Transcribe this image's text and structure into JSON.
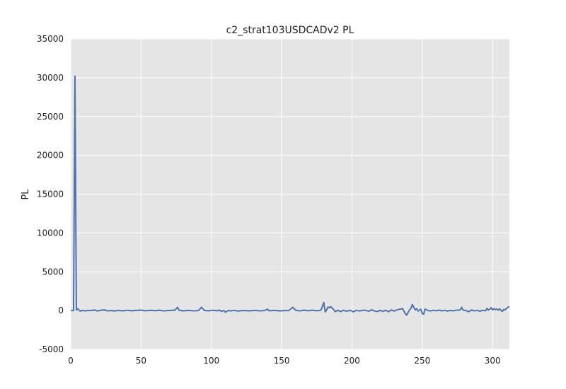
{
  "chart_data": {
    "type": "line",
    "title": "c2_strat103USDCADv2 PL",
    "xlabel": "",
    "ylabel": "PL",
    "xlim": [
      0,
      312
    ],
    "ylim": [
      -5000,
      35000
    ],
    "xticks": [
      0,
      50,
      100,
      150,
      200,
      250,
      300
    ],
    "yticks": [
      -5000,
      0,
      5000,
      10000,
      15000,
      20000,
      25000,
      30000,
      35000
    ],
    "grid": true,
    "background": "#e5e5e5",
    "grid_color": "#ffffff",
    "series": [
      {
        "color": "#4c72b0",
        "points": [
          [
            0,
            0
          ],
          [
            1,
            0
          ],
          [
            2,
            0
          ],
          [
            3,
            30200
          ],
          [
            4,
            50
          ],
          [
            5,
            250
          ],
          [
            6,
            30
          ],
          [
            7,
            -80
          ],
          [
            8,
            20
          ],
          [
            10,
            -30
          ],
          [
            12,
            0
          ],
          [
            15,
            20
          ],
          [
            17,
            80
          ],
          [
            19,
            -50
          ],
          [
            22,
            60
          ],
          [
            24,
            80
          ],
          [
            26,
            -40
          ],
          [
            29,
            10
          ],
          [
            31,
            -60
          ],
          [
            34,
            20
          ],
          [
            37,
            -30
          ],
          [
            40,
            40
          ],
          [
            43,
            -20
          ],
          [
            46,
            10
          ],
          [
            50,
            60
          ],
          [
            53,
            -20
          ],
          [
            57,
            30
          ],
          [
            60,
            -10
          ],
          [
            63,
            50
          ],
          [
            66,
            -40
          ],
          [
            69,
            0
          ],
          [
            72,
            40
          ],
          [
            74,
            30
          ],
          [
            76,
            420
          ],
          [
            77,
            40
          ],
          [
            80,
            -30
          ],
          [
            84,
            20
          ],
          [
            88,
            -40
          ],
          [
            91,
            10
          ],
          [
            93,
            430
          ],
          [
            95,
            20
          ],
          [
            98,
            -30
          ],
          [
            101,
            40
          ],
          [
            104,
            -20
          ],
          [
            106,
            60
          ],
          [
            107,
            -100
          ],
          [
            109,
            10
          ],
          [
            110,
            -220
          ],
          [
            112,
            20
          ],
          [
            114,
            -50
          ],
          [
            116,
            30
          ],
          [
            119,
            -60
          ],
          [
            123,
            10
          ],
          [
            127,
            -30
          ],
          [
            131,
            20
          ],
          [
            135,
            -40
          ],
          [
            138,
            10
          ],
          [
            140,
            180
          ],
          [
            141,
            -30
          ],
          [
            145,
            20
          ],
          [
            149,
            -50
          ],
          [
            152,
            10
          ],
          [
            155,
            -10
          ],
          [
            158,
            420
          ],
          [
            160,
            30
          ],
          [
            163,
            -40
          ],
          [
            166,
            60
          ],
          [
            169,
            -20
          ],
          [
            172,
            50
          ],
          [
            175,
            -20
          ],
          [
            178,
            50
          ],
          [
            180,
            1050
          ],
          [
            181,
            -180
          ],
          [
            182,
            70
          ],
          [
            183,
            450
          ],
          [
            184,
            380
          ],
          [
            185,
            500
          ],
          [
            187,
            120
          ],
          [
            188,
            -140
          ],
          [
            190,
            30
          ],
          [
            192,
            -120
          ],
          [
            194,
            40
          ],
          [
            196,
            -80
          ],
          [
            199,
            20
          ],
          [
            201,
            -160
          ],
          [
            203,
            40
          ],
          [
            205,
            -50
          ],
          [
            207,
            10
          ],
          [
            209,
            50
          ],
          [
            212,
            -80
          ],
          [
            214,
            100
          ],
          [
            216,
            -50
          ],
          [
            218,
            -120
          ],
          [
            220,
            30
          ],
          [
            222,
            -100
          ],
          [
            224,
            40
          ],
          [
            226,
            -150
          ],
          [
            228,
            80
          ],
          [
            230,
            -60
          ],
          [
            232,
            80
          ],
          [
            234,
            170
          ],
          [
            236,
            250
          ],
          [
            238,
            -400
          ],
          [
            239,
            -580
          ],
          [
            240,
            -200
          ],
          [
            241,
            80
          ],
          [
            242,
            300
          ],
          [
            243,
            780
          ],
          [
            244,
            400
          ],
          [
            245,
            80
          ],
          [
            246,
            260
          ],
          [
            247,
            -60
          ],
          [
            249,
            180
          ],
          [
            250,
            -380
          ],
          [
            251,
            -480
          ],
          [
            252,
            200
          ],
          [
            254,
            10
          ],
          [
            256,
            -50
          ],
          [
            258,
            40
          ],
          [
            260,
            -30
          ],
          [
            262,
            60
          ],
          [
            264,
            -40
          ],
          [
            266,
            30
          ],
          [
            268,
            -60
          ],
          [
            270,
            20
          ],
          [
            272,
            -30
          ],
          [
            274,
            40
          ],
          [
            277,
            80
          ],
          [
            278,
            420
          ],
          [
            279,
            60
          ],
          [
            281,
            10
          ],
          [
            283,
            -150
          ],
          [
            285,
            80
          ],
          [
            287,
            -40
          ],
          [
            289,
            30
          ],
          [
            291,
            -80
          ],
          [
            293,
            40
          ],
          [
            295,
            -30
          ],
          [
            296,
            280
          ],
          [
            297,
            50
          ],
          [
            298,
            180
          ],
          [
            299,
            380
          ],
          [
            300,
            80
          ],
          [
            301,
            250
          ],
          [
            302,
            100
          ],
          [
            303,
            200
          ],
          [
            304,
            50
          ],
          [
            305,
            220
          ],
          [
            306,
            20
          ],
          [
            307,
            -100
          ],
          [
            308,
            150
          ],
          [
            309,
            80
          ],
          [
            310,
            300
          ],
          [
            311,
            420
          ],
          [
            312,
            520
          ]
        ]
      }
    ]
  }
}
